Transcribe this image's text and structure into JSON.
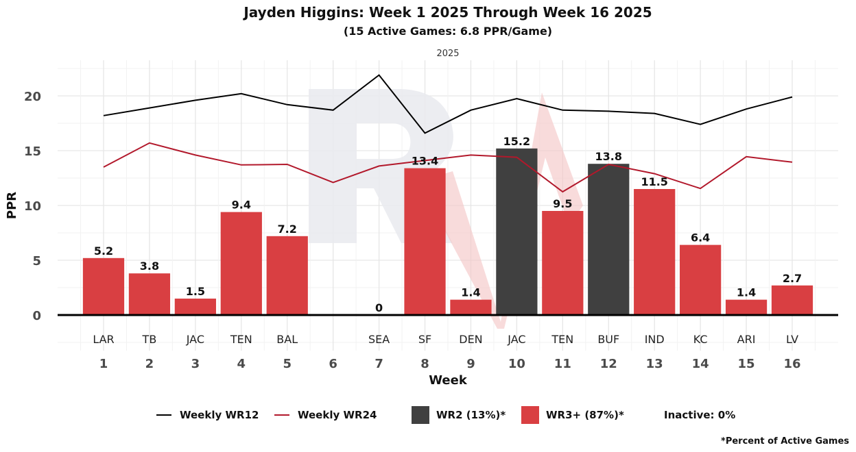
{
  "chart_data": {
    "type": "bar",
    "title": "Jayden Higgins: Week 1 2025 Through Week 16 2025",
    "subtitle": "(15 Active Games: 6.8 PPR/Game)",
    "facet_label": "2025",
    "xlabel": "Week",
    "ylabel": "PPR",
    "ylim": [
      -2.5,
      23
    ],
    "yticks": [
      0,
      5,
      10,
      15,
      20
    ],
    "grid": true,
    "x": [
      1,
      2,
      3,
      4,
      5,
      6,
      7,
      8,
      9,
      10,
      11,
      12,
      13,
      14,
      15,
      16
    ],
    "opponents": [
      "LAR",
      "TB",
      "JAC",
      "TEN",
      "BAL",
      "",
      "SEA",
      "SF",
      "DEN",
      "JAC",
      "TEN",
      "BUF",
      "IND",
      "KC",
      "ARI",
      "LV"
    ],
    "bars": [
      {
        "week": 1,
        "value": 5.2,
        "tier": "WR3+"
      },
      {
        "week": 2,
        "value": 3.8,
        "tier": "WR3+"
      },
      {
        "week": 3,
        "value": 1.5,
        "tier": "WR3+"
      },
      {
        "week": 4,
        "value": 9.4,
        "tier": "WR3+"
      },
      {
        "week": 5,
        "value": 7.2,
        "tier": "WR3+"
      },
      {
        "week": 7,
        "value": 0,
        "tier": "WR3+"
      },
      {
        "week": 8,
        "value": 13.4,
        "tier": "WR3+"
      },
      {
        "week": 9,
        "value": 1.4,
        "tier": "WR3+"
      },
      {
        "week": 10,
        "value": 15.2,
        "tier": "WR2"
      },
      {
        "week": 11,
        "value": 9.5,
        "tier": "WR3+"
      },
      {
        "week": 12,
        "value": 13.8,
        "tier": "WR2"
      },
      {
        "week": 13,
        "value": 11.5,
        "tier": "WR3+"
      },
      {
        "week": 14,
        "value": 6.4,
        "tier": "WR3+"
      },
      {
        "week": 15,
        "value": 1.4,
        "tier": "WR3+"
      },
      {
        "week": 16,
        "value": 2.7,
        "tier": "WR3+"
      }
    ],
    "series": [
      {
        "name": "Weekly WR12",
        "color": "#000000",
        "values": [
          18.2,
          18.9,
          19.6,
          20.2,
          19.2,
          18.7,
          21.9,
          16.6,
          18.7,
          19.75,
          18.7,
          18.6,
          18.4,
          17.4,
          18.8,
          19.9
        ]
      },
      {
        "name": "Weekly WR24",
        "color": "#b2182b",
        "values": [
          13.5,
          15.7,
          14.6,
          13.7,
          13.75,
          12.1,
          13.6,
          14.1,
          14.6,
          14.4,
          11.25,
          13.75,
          12.9,
          11.55,
          14.45,
          13.95
        ]
      }
    ],
    "tier_colors": {
      "WR2": "#404040",
      "WR3+": "#d93f42"
    },
    "legend": {
      "position": "bottom",
      "items": [
        {
          "kind": "line",
          "label": "Weekly WR12",
          "color": "#000000"
        },
        {
          "kind": "line",
          "label": "Weekly WR24",
          "color": "#b2182b"
        },
        {
          "kind": "box",
          "label": "WR2 (13%)*",
          "color": "#404040"
        },
        {
          "kind": "box",
          "label": "WR3+ (87%)*",
          "color": "#d93f42"
        },
        {
          "kind": "text",
          "label": "Inactive: 0%"
        }
      ]
    },
    "footnote": "*Percent of Active Games"
  }
}
